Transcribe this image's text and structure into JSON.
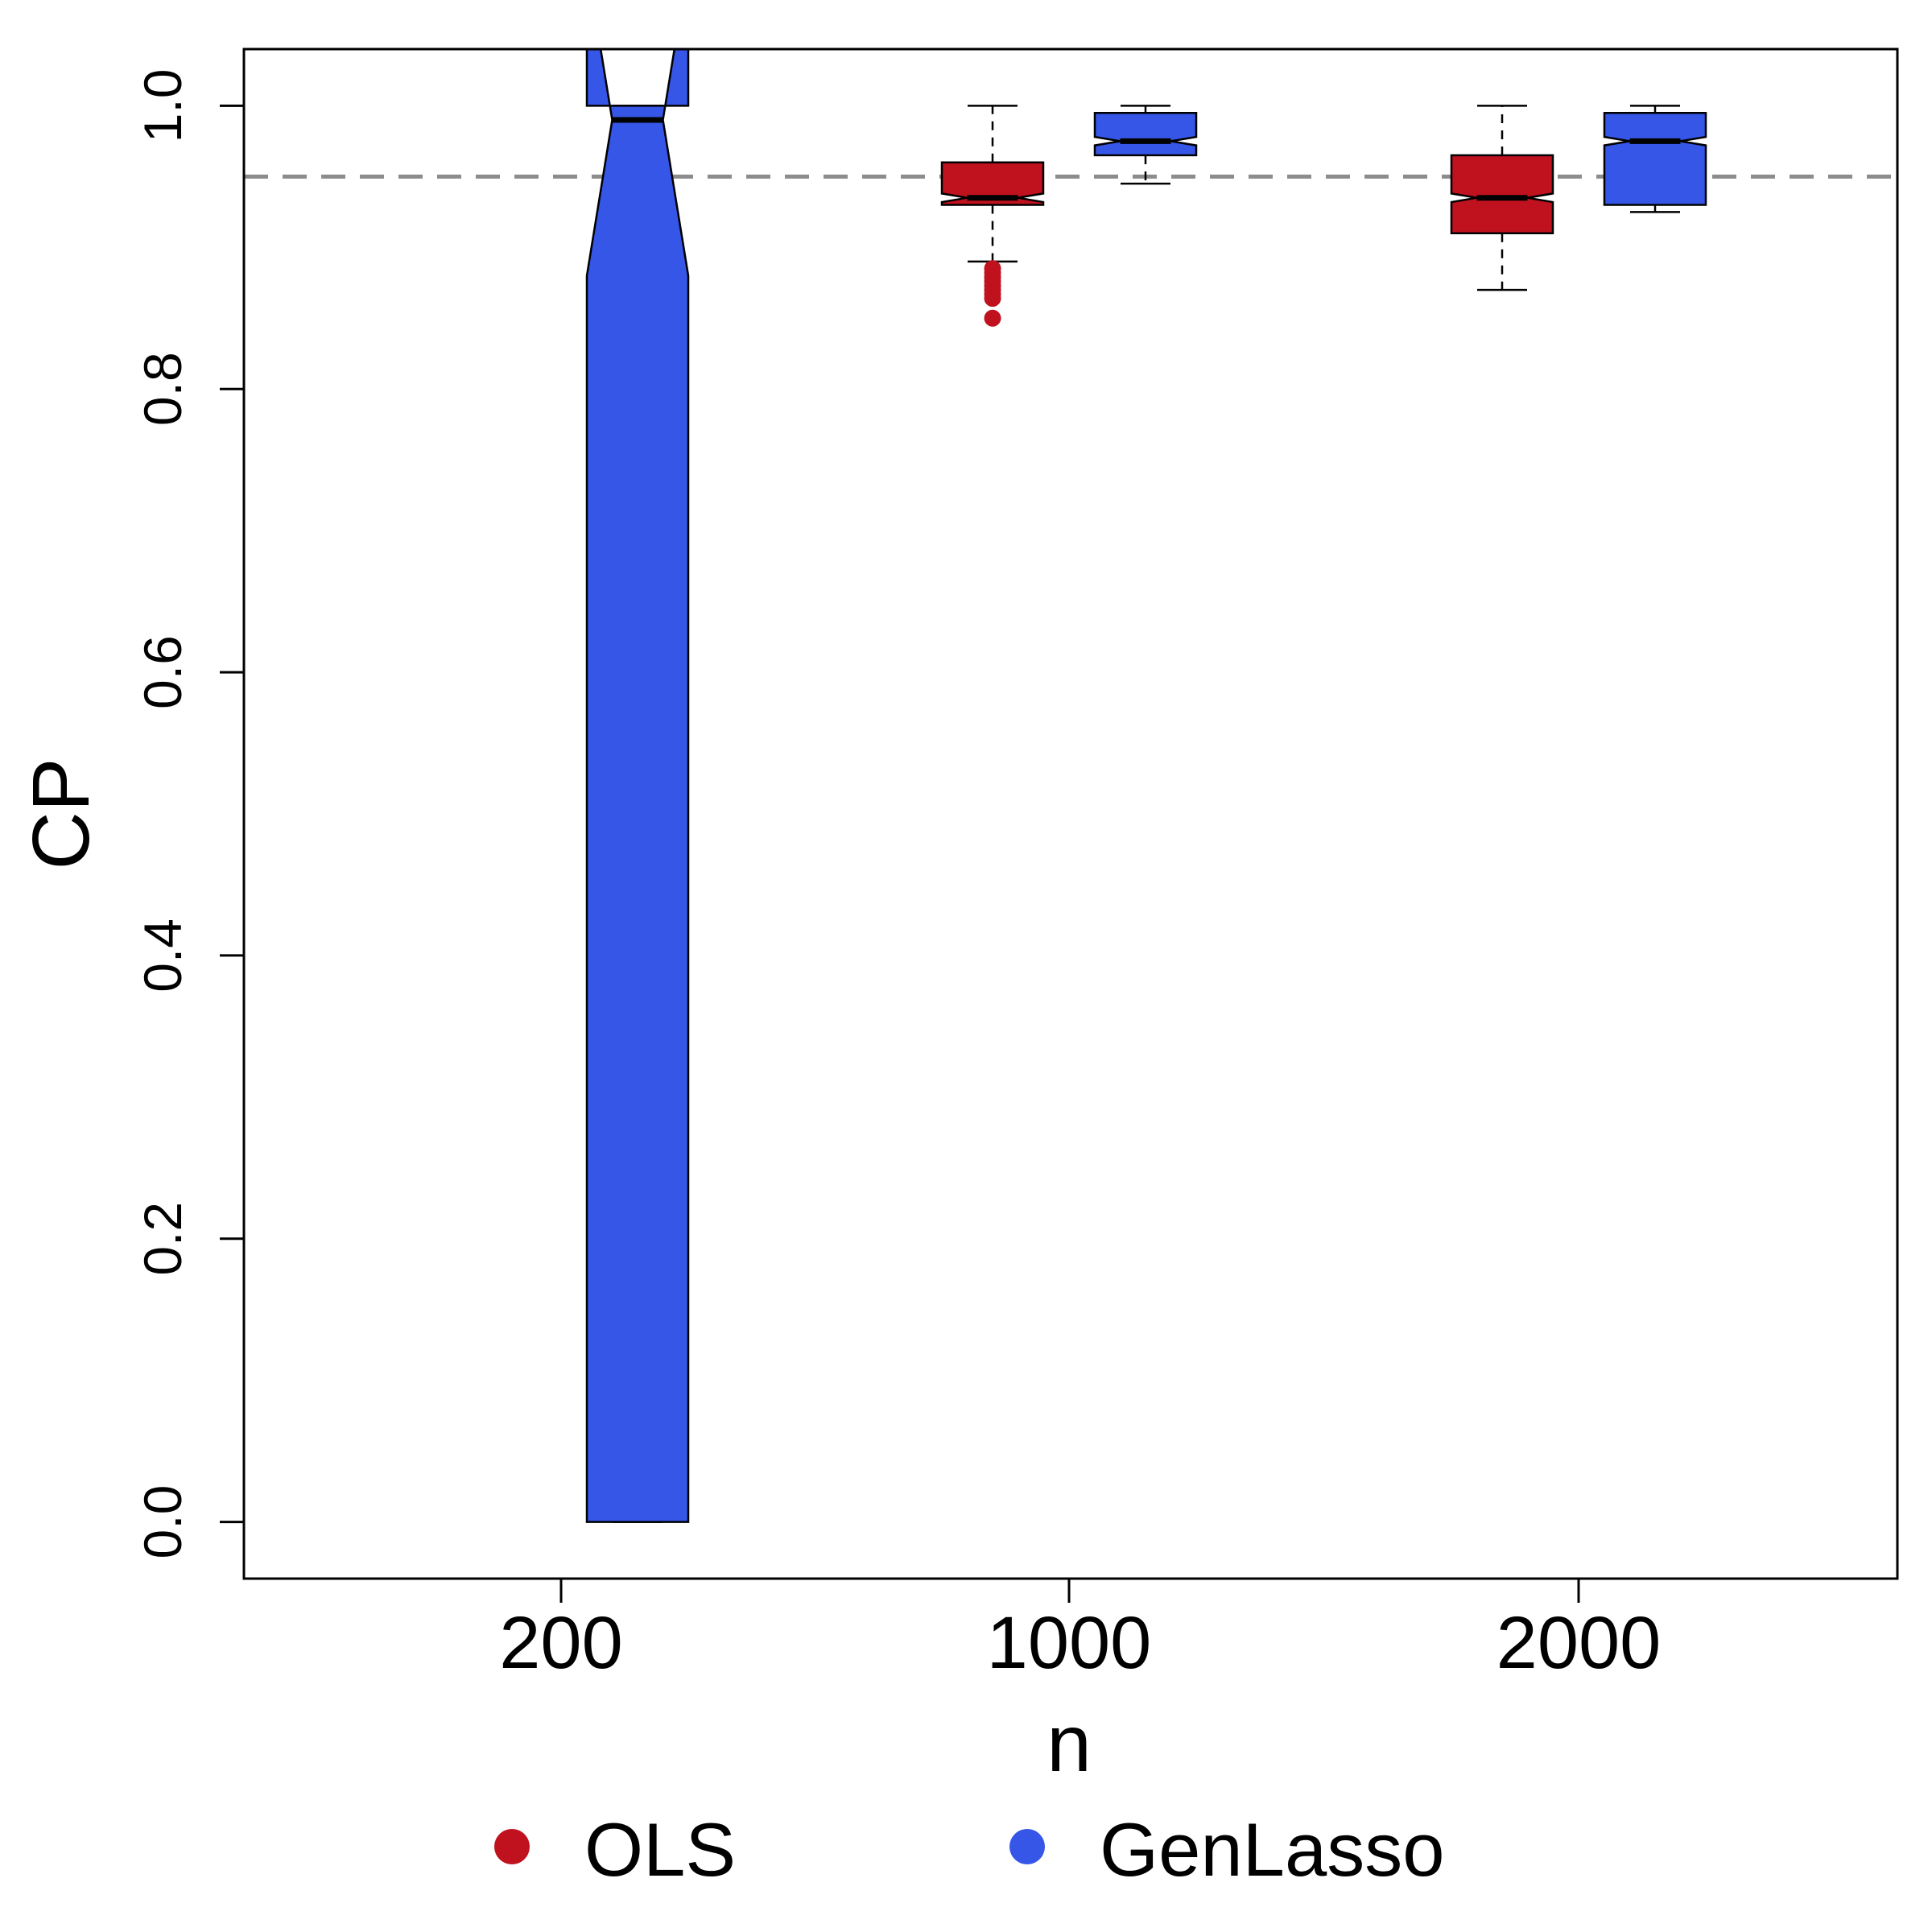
{
  "chart_data": {
    "type": "boxplot",
    "xlabel": "n",
    "ylabel": "CP",
    "ylim": [
      -0.04,
      1.04
    ],
    "y_ticks": [
      "0.0",
      "0.2",
      "0.4",
      "0.6",
      "0.8",
      "1.0"
    ],
    "y_tick_values": [
      0.0,
      0.2,
      0.4,
      0.6,
      0.8,
      1.0
    ],
    "categories": [
      "200",
      "1000",
      "2000"
    ],
    "reference_line": {
      "y": 0.95,
      "style": "dashed",
      "color": "#8c8c8c"
    },
    "grid": false,
    "legend": {
      "position": "bottom",
      "items": [
        {
          "label": "OLS",
          "color": "#c0111f"
        },
        {
          "label": "GenLasso",
          "color": "#3656e8"
        }
      ]
    },
    "series": [
      {
        "name": "OLS",
        "color": "#c0111f",
        "boxes": [
          null,
          {
            "category": "1000",
            "whisker_low": 0.89,
            "q1": 0.93,
            "median": 0.935,
            "q3": 0.96,
            "whisker_high": 1.0,
            "notch_low": 0.932,
            "notch_high": 0.938,
            "outliers": [
              0.885,
              0.882,
              0.879,
              0.876,
              0.873,
              0.87,
              0.867,
              0.864,
              0.85
            ]
          },
          {
            "category": "2000",
            "whisker_low": 0.87,
            "q1": 0.91,
            "median": 0.935,
            "q3": 0.965,
            "whisker_high": 1.0,
            "notch_low": 0.932,
            "notch_high": 0.938,
            "outliers": []
          }
        ]
      },
      {
        "name": "GenLasso",
        "color": "#3656e8",
        "boxes": [
          {
            "category": "200",
            "whisker_low": 0.0,
            "q1": 0.0,
            "median": 0.99,
            "q3": 1.0,
            "whisker_high": 1.0,
            "notch_low": 0.88,
            "notch_high": 1.1,
            "outliers": []
          },
          {
            "category": "1000",
            "whisker_low": 0.945,
            "q1": 0.965,
            "median": 0.975,
            "q3": 0.995,
            "whisker_high": 1.0,
            "notch_low": 0.972,
            "notch_high": 0.978,
            "outliers": []
          },
          {
            "category": "2000",
            "whisker_low": 0.925,
            "q1": 0.93,
            "median": 0.975,
            "q3": 0.995,
            "whisker_high": 1.0,
            "notch_low": 0.972,
            "notch_high": 0.978,
            "outliers": []
          }
        ]
      }
    ]
  }
}
